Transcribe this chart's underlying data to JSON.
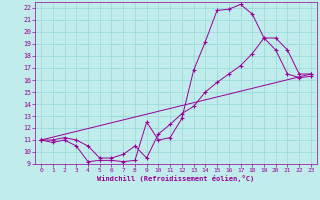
{
  "xlabel": "Windchill (Refroidissement éolien,°C)",
  "bg_color": "#c0ecec",
  "grid_color": "#9dd9d9",
  "line_color": "#990099",
  "xlim": [
    -0.5,
    23.5
  ],
  "ylim": [
    9,
    22.5
  ],
  "xticks": [
    0,
    1,
    2,
    3,
    4,
    5,
    6,
    7,
    8,
    9,
    10,
    11,
    12,
    13,
    14,
    15,
    16,
    17,
    18,
    19,
    20,
    21,
    22,
    23
  ],
  "yticks": [
    9,
    10,
    11,
    12,
    13,
    14,
    15,
    16,
    17,
    18,
    19,
    20,
    21,
    22
  ],
  "curve1_x": [
    0,
    1,
    2,
    3,
    4,
    5,
    6,
    7,
    8,
    9,
    10,
    11,
    12,
    13,
    14,
    15,
    16,
    17,
    18,
    19,
    20,
    21,
    22,
    23
  ],
  "curve1_y": [
    11,
    10.8,
    11.0,
    10.5,
    9.2,
    9.3,
    9.3,
    9.2,
    9.3,
    12.5,
    11.0,
    11.2,
    12.8,
    16.8,
    19.2,
    21.8,
    21.9,
    22.3,
    21.5,
    19.5,
    18.5,
    16.5,
    16.2,
    16.3
  ],
  "curve2_x": [
    0,
    1,
    2,
    3,
    4,
    5,
    6,
    7,
    8,
    9,
    10,
    11,
    12,
    13,
    14,
    15,
    16,
    17,
    18,
    19,
    20,
    21,
    22,
    23
  ],
  "curve2_y": [
    11,
    11.0,
    11.2,
    11.0,
    10.5,
    9.5,
    9.5,
    9.8,
    10.5,
    9.5,
    11.5,
    12.3,
    13.2,
    13.8,
    15.0,
    15.8,
    16.5,
    17.2,
    18.2,
    19.5,
    19.5,
    18.5,
    16.5,
    16.5
  ],
  "curve3_x": [
    0,
    23
  ],
  "curve3_y": [
    11,
    16.5
  ]
}
